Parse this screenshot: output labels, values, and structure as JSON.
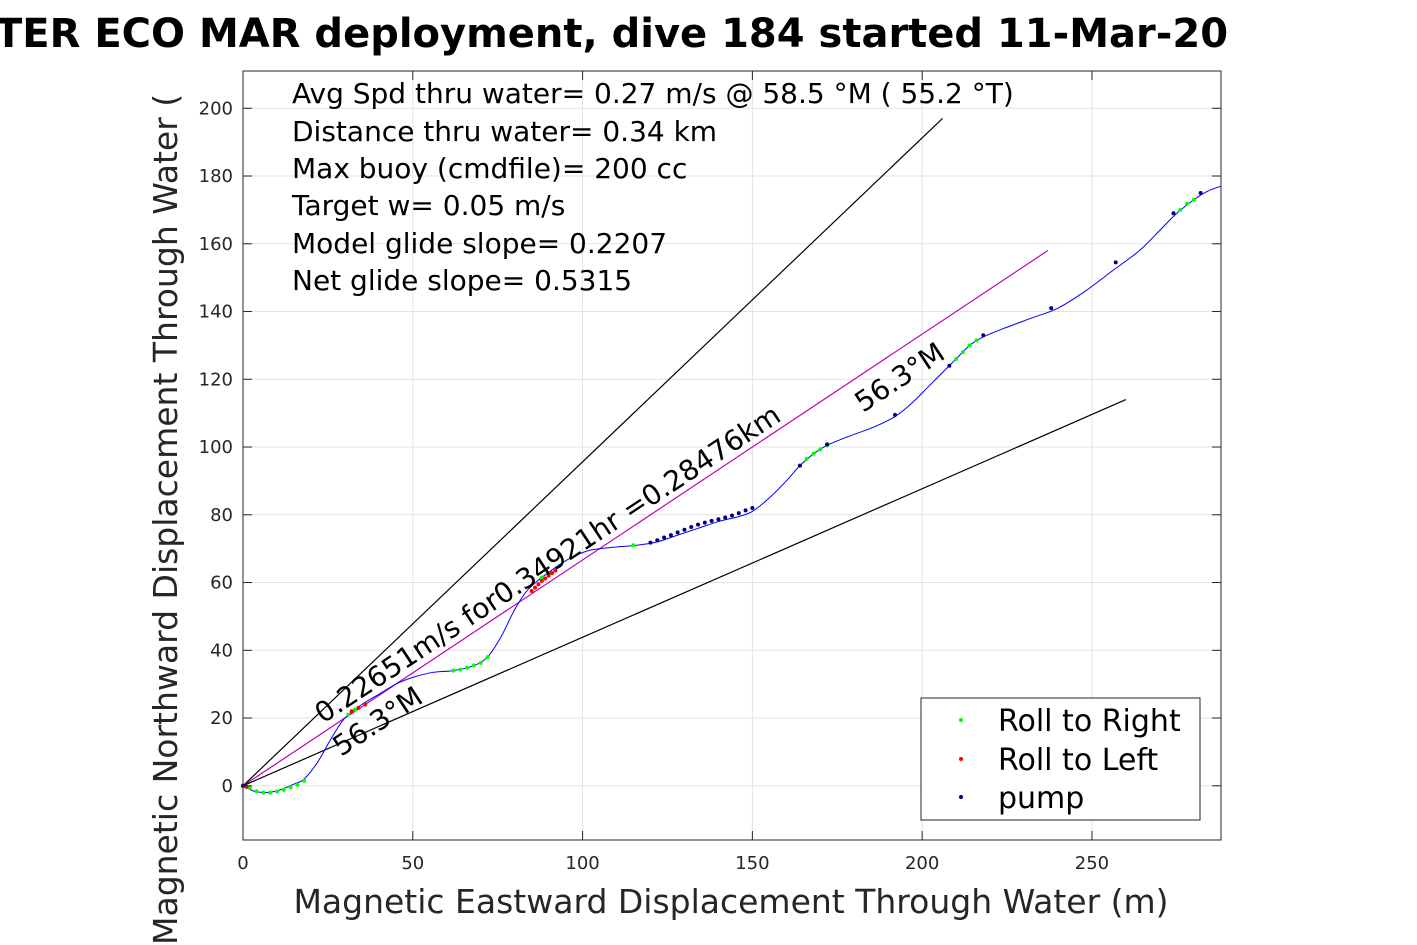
{
  "chart_data": {
    "type": "scatter",
    "title": "TER ECO MAR deployment, dive 184 started 11-Mar-20",
    "xlabel": "Magnetic Eastward Displacement Through Water (m)",
    "ylabel": "Magnetic Northward Displacement Through Water (",
    "xlim": [
      0,
      288
    ],
    "ylim": [
      -16,
      211
    ],
    "xticks": [
      0,
      50,
      100,
      150,
      200,
      250
    ],
    "yticks": [
      0,
      20,
      40,
      60,
      80,
      100,
      120,
      140,
      160,
      180,
      200
    ],
    "grid": true,
    "legend_position": "bottom-right",
    "info_lines": [
      "Avg Spd thru water=  0.27 m/s @  58.5 °M ( 55.2 °T)",
      "Distance thru water=  0.34 km",
      "Max buoy (cmdfile)= 200 cc",
      "Target w= 0.05 m/s",
      "Model glide slope= 0.2207",
      "Net glide slope= 0.5315"
    ],
    "annotations": {
      "main_line_label": "0.22651m/s for0.34921hr =0.28476km",
      "heading_label_low": "56.3°M",
      "heading_label_high": "56.3°M"
    },
    "reference_lines": [
      {
        "name": "upper",
        "x": [
          0,
          206
        ],
        "y": [
          0,
          197
        ],
        "color": "#000000"
      },
      {
        "name": "mean-course",
        "x": [
          0,
          237
        ],
        "y": [
          0,
          158
        ],
        "color": "#c000c0"
      },
      {
        "name": "lower",
        "x": [
          0,
          260
        ],
        "y": [
          0,
          114
        ],
        "color": "#000000"
      }
    ],
    "track": {
      "color": "#0000ff",
      "points": [
        [
          0,
          0
        ],
        [
          3,
          -1.5
        ],
        [
          6,
          -2
        ],
        [
          10,
          -1.5
        ],
        [
          15,
          0.5
        ],
        [
          18,
          2
        ],
        [
          22,
          7
        ],
        [
          26,
          14
        ],
        [
          30,
          20
        ],
        [
          35,
          24
        ],
        [
          40,
          27
        ],
        [
          45,
          30
        ],
        [
          50,
          32
        ],
        [
          56,
          33.5
        ],
        [
          62,
          34
        ],
        [
          68,
          35.5
        ],
        [
          72,
          38
        ],
        [
          76,
          44
        ],
        [
          80,
          52
        ],
        [
          84,
          58
        ],
        [
          90,
          63
        ],
        [
          96,
          67
        ],
        [
          102,
          69.5
        ],
        [
          110,
          70.5
        ],
        [
          116,
          71
        ],
        [
          122,
          72
        ],
        [
          128,
          74
        ],
        [
          134,
          76
        ],
        [
          140,
          78
        ],
        [
          146,
          79.5
        ],
        [
          150,
          81
        ],
        [
          155,
          85
        ],
        [
          160,
          90
        ],
        [
          164,
          94.5
        ],
        [
          168,
          98
        ],
        [
          172,
          100.5
        ],
        [
          178,
          103
        ],
        [
          186,
          106
        ],
        [
          192,
          109
        ],
        [
          197,
          113
        ],
        [
          202,
          118
        ],
        [
          206,
          122
        ],
        [
          210,
          126
        ],
        [
          214,
          130
        ],
        [
          218,
          132.5
        ],
        [
          224,
          135
        ],
        [
          232,
          138
        ],
        [
          240,
          141
        ],
        [
          248,
          146
        ],
        [
          256,
          152
        ],
        [
          264,
          158
        ],
        [
          270,
          164
        ],
        [
          275,
          169
        ],
        [
          280,
          173
        ],
        [
          284,
          175.5
        ],
        [
          288,
          177
        ]
      ]
    },
    "series": [
      {
        "name": "Roll to Right",
        "color": "#00ff00",
        "x": [
          2,
          4,
          6,
          8,
          10,
          12,
          14,
          16,
          18,
          31,
          33,
          62,
          64,
          66,
          68,
          70,
          72,
          88,
          90,
          115,
          164,
          166,
          168,
          170,
          172,
          210,
          212,
          214,
          216,
          276,
          278,
          280
        ],
        "y": [
          -0.5,
          -1.6,
          -2,
          -2,
          -1.7,
          -1.2,
          -0.5,
          0.3,
          1.5,
          21,
          22.5,
          34,
          34.3,
          34.8,
          35.5,
          36.3,
          38,
          61.5,
          62.5,
          71,
          94.5,
          96.5,
          98,
          99.3,
          100.5,
          126,
          128,
          130,
          131.5,
          170,
          171.8,
          173
        ]
      },
      {
        "name": "Roll to Left",
        "color": "#ff0000",
        "x": [
          0,
          1,
          32,
          34,
          36,
          85,
          86,
          87,
          88,
          89,
          90,
          91,
          92
        ],
        "y": [
          0,
          -0.3,
          22,
          23,
          24,
          57.5,
          58.5,
          59.5,
          60.5,
          61.2,
          62,
          62.8,
          63.5
        ]
      },
      {
        "name": "pump",
        "color": "#000080",
        "x": [
          0,
          120,
          122,
          124,
          126,
          128,
          130,
          132,
          134,
          136,
          138,
          140,
          142,
          144,
          146,
          148,
          150,
          164,
          172,
          192,
          208,
          218,
          238,
          257,
          274,
          282
        ],
        "y": [
          0,
          71.8,
          72.5,
          73.3,
          74,
          74.8,
          75.6,
          76.4,
          77.1,
          77.7,
          78.2,
          78.7,
          79.2,
          79.8,
          80.5,
          81.3,
          82,
          94.5,
          100.8,
          109.5,
          124,
          133,
          141,
          154.5,
          169,
          175
        ]
      }
    ]
  }
}
